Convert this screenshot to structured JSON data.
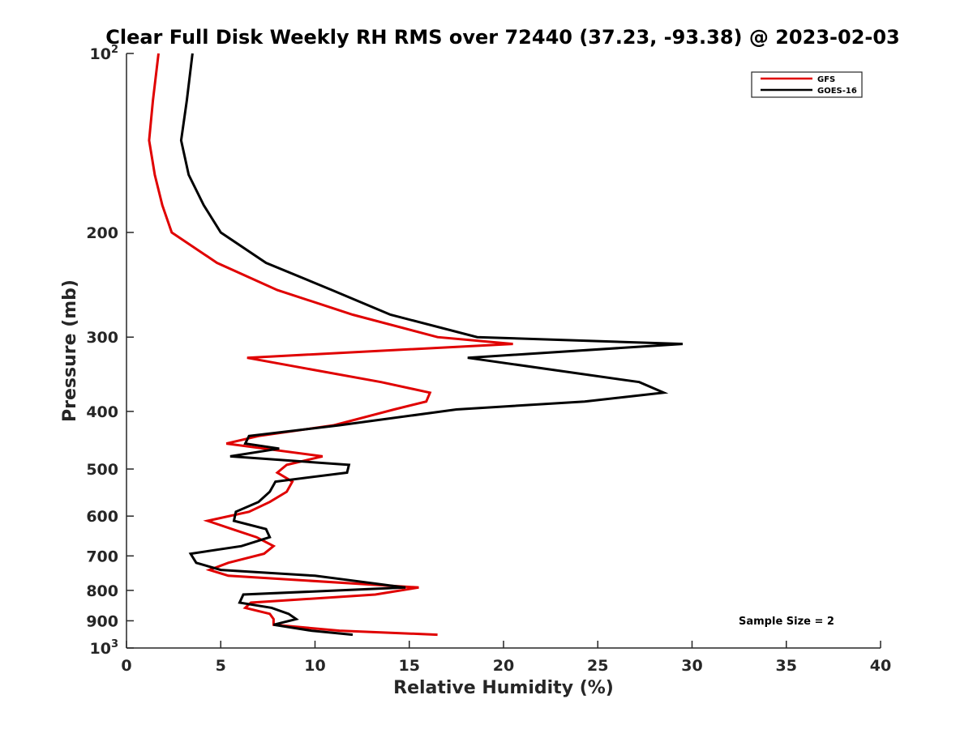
{
  "chart_data": {
    "type": "line",
    "title": "Clear Full Disk Weekly RH RMS over 72440 (37.23, -93.38) @ 2023-02-03",
    "xlabel": "Relative Humidity (%)",
    "ylabel": "Pressure (mb)",
    "xlim": [
      0,
      40
    ],
    "ylim": [
      100,
      1000
    ],
    "y_scale": "log",
    "y_reversed": true,
    "grid": false,
    "legend_position": "top-right",
    "x_ticks": [
      {
        "value": 0,
        "label": "0"
      },
      {
        "value": 5,
        "label": "5"
      },
      {
        "value": 10,
        "label": "10"
      },
      {
        "value": 15,
        "label": "15"
      },
      {
        "value": 20,
        "label": "20"
      },
      {
        "value": 25,
        "label": "25"
      },
      {
        "value": 30,
        "label": "30"
      },
      {
        "value": 35,
        "label": "35"
      },
      {
        "value": 40,
        "label": "40"
      }
    ],
    "y_ticks": [
      {
        "value": 100,
        "label": "10",
        "sup": "2"
      },
      {
        "value": 200,
        "label": "200",
        "sup": ""
      },
      {
        "value": 300,
        "label": "300",
        "sup": ""
      },
      {
        "value": 400,
        "label": "400",
        "sup": ""
      },
      {
        "value": 500,
        "label": "500",
        "sup": ""
      },
      {
        "value": 600,
        "label": "600",
        "sup": ""
      },
      {
        "value": 700,
        "label": "700",
        "sup": ""
      },
      {
        "value": 800,
        "label": "800",
        "sup": ""
      },
      {
        "value": 900,
        "label": "900",
        "sup": ""
      },
      {
        "value": 1000,
        "label": "10",
        "sup": "3"
      }
    ],
    "series": [
      {
        "name": "GFS",
        "color": "#e00000",
        "points": [
          [
            1.7,
            100
          ],
          [
            1.4,
            120
          ],
          [
            1.2,
            140
          ],
          [
            1.5,
            160
          ],
          [
            1.9,
            180
          ],
          [
            2.4,
            200
          ],
          [
            4.8,
            225
          ],
          [
            8.0,
            250
          ],
          [
            12.0,
            275
          ],
          [
            16.5,
            300
          ],
          [
            20.5,
            308
          ],
          [
            6.4,
            325
          ],
          [
            13.5,
            357
          ],
          [
            16.1,
            372
          ],
          [
            15.9,
            385
          ],
          [
            14.2,
            397
          ],
          [
            11.0,
            422
          ],
          [
            7.0,
            440
          ],
          [
            5.3,
            453
          ],
          [
            7.3,
            462
          ],
          [
            10.4,
            476
          ],
          [
            8.5,
            492
          ],
          [
            8.0,
            507
          ],
          [
            8.8,
            525
          ],
          [
            8.5,
            546
          ],
          [
            7.6,
            568
          ],
          [
            6.5,
            590
          ],
          [
            4.3,
            611
          ],
          [
            5.6,
            631
          ],
          [
            6.9,
            651
          ],
          [
            7.8,
            674
          ],
          [
            7.3,
            694
          ],
          [
            5.4,
            719
          ],
          [
            4.4,
            739
          ],
          [
            5.4,
            756
          ],
          [
            15.5,
            791
          ],
          [
            13.2,
            813
          ],
          [
            6.6,
            839
          ],
          [
            6.3,
            856
          ],
          [
            7.6,
            876
          ],
          [
            7.8,
            894
          ],
          [
            7.8,
            914
          ],
          [
            11.3,
            935
          ],
          [
            16.5,
            950
          ]
        ]
      },
      {
        "name": "GOES-16",
        "color": "#000000",
        "points": [
          [
            3.5,
            100
          ],
          [
            3.2,
            120
          ],
          [
            2.9,
            140
          ],
          [
            3.3,
            160
          ],
          [
            4.1,
            180
          ],
          [
            5.0,
            200
          ],
          [
            7.4,
            225
          ],
          [
            10.9,
            250
          ],
          [
            14.0,
            275
          ],
          [
            18.6,
            300
          ],
          [
            29.5,
            308
          ],
          [
            18.1,
            325
          ],
          [
            27.2,
            357
          ],
          [
            28.5,
            372
          ],
          [
            24.3,
            385
          ],
          [
            17.5,
            397
          ],
          [
            11.3,
            422
          ],
          [
            6.5,
            440
          ],
          [
            6.3,
            453
          ],
          [
            8.1,
            462
          ],
          [
            5.5,
            476
          ],
          [
            11.8,
            492
          ],
          [
            11.7,
            507
          ],
          [
            7.9,
            525
          ],
          [
            7.6,
            546
          ],
          [
            7.0,
            568
          ],
          [
            5.8,
            590
          ],
          [
            5.7,
            611
          ],
          [
            7.4,
            631
          ],
          [
            7.6,
            651
          ],
          [
            6.1,
            674
          ],
          [
            3.4,
            694
          ],
          [
            3.7,
            719
          ],
          [
            5.0,
            739
          ],
          [
            10.0,
            756
          ],
          [
            14.8,
            791
          ],
          [
            6.2,
            813
          ],
          [
            6.0,
            839
          ],
          [
            7.7,
            856
          ],
          [
            8.6,
            876
          ],
          [
            9.0,
            894
          ],
          [
            7.8,
            914
          ],
          [
            9.8,
            935
          ],
          [
            12.0,
            950
          ]
        ]
      }
    ],
    "annotation": "Sample Size = 2"
  }
}
